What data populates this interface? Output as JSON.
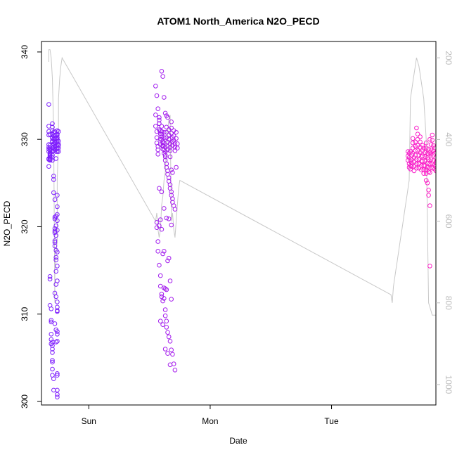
{
  "chart_data": {
    "type": "scatter",
    "title": "ATOM1 North_America N2O_PECD",
    "xlabel": "Date",
    "ylabel": "N2O_PECD",
    "x_ticks": [
      {
        "label": "Sun",
        "value": 0
      },
      {
        "label": "Mon",
        "value": 1
      },
      {
        "label": "Tue",
        "value": 2
      }
    ],
    "xlim": [
      -0.39,
      2.86
    ],
    "ylim": [
      299.6,
      341.2
    ],
    "y_ticks": [
      300,
      310,
      320,
      330,
      340
    ],
    "y2lim": [
      1050,
      160
    ],
    "y2_ticks": [
      200,
      400,
      600,
      800,
      1000
    ],
    "y2_color": "#bdbdbd",
    "color_start": "#7a1fff",
    "color_end": "#ff1fc6",
    "series": [
      {
        "type": "points",
        "x": [
          -0.33,
          -0.33,
          -0.33,
          -0.32,
          -0.33,
          -0.33,
          -0.32,
          -0.32,
          -0.33,
          -0.32,
          -0.33,
          -0.33,
          -0.32,
          -0.32,
          -0.33,
          -0.32,
          -0.33,
          -0.33,
          -0.32,
          -0.32,
          -0.32,
          -0.32,
          -0.32,
          -0.32,
          -0.3,
          -0.3,
          -0.3,
          -0.3,
          -0.3,
          -0.3,
          -0.3,
          -0.3,
          -0.3,
          -0.3,
          -0.3,
          -0.3,
          -0.3,
          -0.3,
          -0.29,
          -0.29,
          -0.29,
          -0.29,
          -0.29,
          -0.29,
          -0.28,
          -0.28,
          -0.28,
          -0.28,
          -0.28,
          -0.28,
          -0.27,
          -0.27,
          -0.27,
          -0.27,
          -0.27,
          -0.27,
          -0.26,
          -0.26,
          -0.26,
          -0.26,
          -0.26,
          -0.26,
          -0.26,
          -0.26,
          -0.26,
          -0.25,
          -0.25,
          -0.25,
          -0.25,
          -0.32,
          -0.32,
          -0.32,
          -0.31,
          -0.31,
          -0.31,
          -0.31,
          -0.31,
          -0.31,
          -0.3,
          -0.3,
          -0.3,
          -0.3,
          -0.3,
          -0.3,
          -0.3,
          -0.3,
          -0.29,
          -0.29,
          -0.29,
          -0.29,
          -0.29,
          -0.28,
          -0.28,
          -0.28,
          -0.28,
          -0.28,
          -0.28,
          -0.28,
          -0.27,
          -0.27,
          -0.27,
          -0.27,
          -0.27,
          -0.26,
          -0.26,
          -0.26,
          -0.26,
          -0.26,
          -0.26,
          -0.26,
          -0.26,
          -0.26,
          -0.26,
          -0.26,
          -0.26,
          -0.26,
          -0.26,
          -0.26,
          -0.26,
          -0.26,
          -0.26,
          -0.26,
          -0.27,
          -0.27,
          -0.27,
          -0.27,
          -0.27,
          -0.28,
          -0.28,
          -0.28,
          -0.28,
          -0.27,
          -0.26,
          -0.25,
          -0.25,
          -0.27
        ],
        "y": [
          334,
          330.9,
          330.5,
          330.6,
          331.5,
          329.4,
          328.7,
          328.4,
          327.8,
          328.2,
          328.6,
          328.9,
          327.9,
          328.3,
          327.7,
          329.3,
          326.9,
          329.1,
          328.8,
          327.7,
          329.0,
          328.1,
          327.6,
          327.9,
          331.8,
          331.4,
          331.0,
          330.6,
          330.1,
          329.7,
          329.3,
          329.0,
          328.6,
          328.2,
          327.9,
          327.6,
          329.8,
          330.2,
          330.8,
          330.4,
          330.0,
          329.5,
          329.1,
          328.7,
          330.9,
          330.5,
          330.1,
          329.6,
          329.2,
          328.8,
          330.5,
          330.1,
          329.7,
          329.3,
          328.9,
          328.6,
          331.0,
          330.6,
          330.2,
          329.8,
          329.4,
          329.0,
          328.6,
          330.5,
          330.0,
          329.8,
          329.4,
          329.0,
          328.6,
          314.3,
          314.0,
          311.0,
          310.6,
          309.3,
          309.1,
          307.7,
          307.1,
          306.6,
          306.8,
          306.4,
          306.0,
          305.6,
          304.7,
          304.5,
          303.7,
          303.0,
          302.6,
          301.3,
          325.8,
          325.4,
          323.9,
          323.1,
          321.1,
          320.9,
          319.5,
          319.3,
          318.4,
          317.8,
          317.3,
          316.2,
          314.9,
          313.4,
          312.0,
          311.4,
          310.8,
          310.4,
          308.0,
          307.7,
          306.9,
          303.0,
          301.3,
          300.8,
          300.5,
          321.4,
          320.7,
          319.6,
          323.6,
          322.3,
          317.1,
          315.5,
          313.8,
          310.3,
          308.2,
          306.8,
          321.2,
          319.0,
          316.5,
          319.8,
          318.2,
          312.4,
          308.9,
          320.1,
          303.2,
          330.9,
          329.3,
          327.8
        ]
      },
      {
        "type": "points",
        "x": [
          0.55,
          0.55,
          0.56,
          0.56,
          0.56,
          0.57,
          0.57,
          0.57,
          0.58,
          0.58,
          0.58,
          0.59,
          0.59,
          0.59,
          0.6,
          0.6,
          0.6,
          0.61,
          0.61,
          0.61,
          0.62,
          0.62,
          0.62,
          0.63,
          0.63,
          0.63,
          0.64,
          0.64,
          0.64,
          0.65,
          0.65,
          0.65,
          0.66,
          0.66,
          0.66,
          0.67,
          0.67,
          0.67,
          0.68,
          0.68,
          0.68,
          0.69,
          0.69,
          0.69,
          0.7,
          0.7,
          0.7,
          0.71,
          0.71,
          0.71,
          0.72,
          0.72,
          0.73,
          0.73,
          0.55,
          0.56,
          0.57,
          0.58,
          0.58,
          0.59,
          0.6,
          0.6,
          0.61,
          0.61,
          0.62,
          0.62,
          0.63,
          0.63,
          0.64,
          0.64,
          0.65,
          0.65,
          0.66,
          0.66,
          0.67,
          0.67,
          0.68,
          0.68,
          0.69,
          0.69,
          0.7,
          0.71,
          0.72,
          0.56,
          0.56,
          0.57,
          0.57,
          0.58,
          0.59,
          0.59,
          0.6,
          0.6,
          0.61,
          0.62,
          0.63,
          0.63,
          0.64,
          0.64,
          0.65,
          0.66,
          0.67,
          0.68,
          0.69,
          0.7,
          0.71,
          0.58,
          0.59,
          0.6,
          0.61,
          0.62,
          0.62,
          0.63,
          0.64,
          0.65,
          0.66,
          0.67,
          0.68,
          0.6,
          0.61,
          0.62,
          0.63,
          0.64,
          0.65,
          0.66,
          0.67,
          0.68,
          0.69,
          0.58,
          0.6,
          0.62,
          0.64,
          0.66,
          0.68,
          0.59,
          0.61,
          0.63,
          0.65,
          0.67
        ],
        "y": [
          332.8,
          331.5,
          330.9,
          330.2,
          329.6,
          329.2,
          328.8,
          328.3,
          332.5,
          331.8,
          331.1,
          330.6,
          330.0,
          329.4,
          331.5,
          330.9,
          330.3,
          329.8,
          329.3,
          328.9,
          330.8,
          330.2,
          329.6,
          329.1,
          328.6,
          328.2,
          331.4,
          330.8,
          330.2,
          329.7,
          329.2,
          328.8,
          331.1,
          330.5,
          330.0,
          329.5,
          329.1,
          328.7,
          332.0,
          331.3,
          330.7,
          330.2,
          329.7,
          329.3,
          331.0,
          330.4,
          329.9,
          329.5,
          329.1,
          328.7,
          330.8,
          330.1,
          329.5,
          329.0,
          336.1,
          335.0,
          333.5,
          332.2,
          331.8,
          331.0,
          330.6,
          330.0,
          329.6,
          329.2,
          328.8,
          328.4,
          328.0,
          327.6,
          327.2,
          326.8,
          326.4,
          326.0,
          325.6,
          325.2,
          324.8,
          324.4,
          324.0,
          323.6,
          323.2,
          322.8,
          322.4,
          322.0,
          326.8,
          319.9,
          320.5,
          318.3,
          317.2,
          315.6,
          314.4,
          313.2,
          312.3,
          312.0,
          311.5,
          311.8,
          310.5,
          309.8,
          309.2,
          308.5,
          307.9,
          307.4,
          306.9,
          305.9,
          305.4,
          304.3,
          303.6,
          320.1,
          320.8,
          319.7,
          316.9,
          317.2,
          313.0,
          312.9,
          312.8,
          316.1,
          316.4,
          313.8,
          311.7,
          337.8,
          337.2,
          334.8,
          333.0,
          332.7,
          332.5,
          330.0,
          328.0,
          326.5,
          326.2,
          324.4,
          324.0,
          322.1,
          321.0,
          320.9,
          320.2,
          309.2,
          308.8,
          306.0,
          305.5,
          304.2
        ]
      },
      {
        "type": "points",
        "x": [
          2.63,
          2.63,
          2.63,
          2.64,
          2.64,
          2.64,
          2.64,
          2.65,
          2.65,
          2.65,
          2.65,
          2.66,
          2.66,
          2.66,
          2.66,
          2.67,
          2.67,
          2.67,
          2.67,
          2.68,
          2.68,
          2.68,
          2.68,
          2.69,
          2.69,
          2.69,
          2.69,
          2.7,
          2.7,
          2.7,
          2.7,
          2.71,
          2.71,
          2.71,
          2.71,
          2.72,
          2.72,
          2.72,
          2.72,
          2.73,
          2.73,
          2.73,
          2.73,
          2.74,
          2.74,
          2.74,
          2.74,
          2.75,
          2.75,
          2.75,
          2.75,
          2.76,
          2.76,
          2.76,
          2.76,
          2.77,
          2.77,
          2.77,
          2.77,
          2.78,
          2.78,
          2.78,
          2.78,
          2.79,
          2.79,
          2.79,
          2.79,
          2.8,
          2.8,
          2.8,
          2.8,
          2.81,
          2.81,
          2.81,
          2.81,
          2.82,
          2.82,
          2.82,
          2.82,
          2.83,
          2.83,
          2.83,
          2.83,
          2.84,
          2.84,
          2.84,
          2.84,
          2.85,
          2.85,
          2.85,
          2.85,
          2.86,
          2.86,
          2.86,
          2.86,
          2.78,
          2.79,
          2.8,
          2.8,
          2.81,
          2.81,
          2.81
        ],
        "y": [
          328.6,
          328.1,
          327.6,
          327.2,
          326.8,
          328.4,
          327.9,
          327.5,
          327.0,
          326.6,
          328.6,
          328.2,
          327.7,
          327.3,
          326.9,
          330.1,
          329.6,
          329.0,
          328.4,
          327.9,
          327.4,
          326.9,
          326.4,
          329.7,
          329.2,
          328.7,
          328.2,
          327.7,
          327.2,
          326.7,
          331.3,
          330.6,
          330.0,
          329.3,
          328.7,
          328.2,
          327.7,
          327.2,
          326.7,
          330.3,
          329.7,
          329.1,
          328.5,
          328.0,
          327.5,
          327.0,
          326.5,
          329.3,
          328.7,
          328.1,
          327.5,
          327.0,
          326.5,
          326.1,
          329.0,
          328.5,
          328.0,
          327.5,
          327.0,
          326.5,
          326.1,
          329.6,
          329.0,
          328.4,
          327.9,
          327.3,
          326.8,
          326.3,
          328.9,
          328.3,
          327.7,
          327.2,
          326.7,
          326.2,
          330.0,
          329.4,
          328.8,
          328.3,
          327.7,
          327.2,
          326.7,
          330.5,
          329.9,
          329.3,
          328.7,
          328.2,
          327.6,
          327.1,
          326.6,
          329.0,
          328.4,
          327.9,
          327.4,
          326.9,
          326.4,
          325.3,
          325.0,
          324.2,
          323.6,
          322.4,
          315.5,
          328.5
        ]
      }
    ],
    "pressure_line_note": "",
    "pressure_line": {
      "x": [
        -0.33,
        -0.33,
        -0.32,
        -0.31,
        -0.3,
        -0.29,
        -0.28,
        -0.28,
        -0.27,
        -0.26,
        -0.26,
        -0.26,
        -0.25,
        -0.25,
        -0.24,
        -0.23,
        -0.22,
        0.55,
        0.56,
        0.57,
        0.58,
        0.59,
        0.6,
        0.61,
        0.62,
        0.63,
        0.64,
        0.65,
        0.66,
        0.67,
        0.68,
        0.69,
        0.7,
        0.71,
        0.72,
        0.73,
        0.74,
        0.75,
        2.49,
        2.5,
        2.51,
        2.52,
        2.53,
        2.54,
        2.55,
        2.56,
        2.57,
        2.58,
        2.59,
        2.6,
        2.61,
        2.62,
        2.63,
        2.64,
        2.65,
        2.66,
        2.67,
        2.68,
        2.69,
        2.7,
        2.71,
        2.72,
        2.73,
        2.74,
        2.75,
        2.76,
        2.77,
        2.78,
        2.79,
        2.8,
        2.81,
        2.82,
        2.83,
        2.84,
        2.85,
        2.86
      ],
      "y": [
        210,
        180,
        180,
        200,
        250,
        380,
        800,
        720,
        680,
        650,
        600,
        500,
        400,
        300,
        250,
        220,
        200,
        600,
        580,
        620,
        640,
        620,
        560,
        540,
        500,
        480,
        420,
        380,
        350,
        340,
        600,
        580,
        620,
        640,
        600,
        560,
        520,
        500,
        780,
        800,
        760,
        740,
        720,
        700,
        680,
        660,
        640,
        620,
        600,
        580,
        560,
        540,
        520,
        500,
        300,
        280,
        260,
        240,
        220,
        200,
        210,
        220,
        240,
        260,
        280,
        300,
        350,
        400,
        600,
        800,
        810,
        820,
        830,
        830,
        830,
        830
      ]
    }
  }
}
